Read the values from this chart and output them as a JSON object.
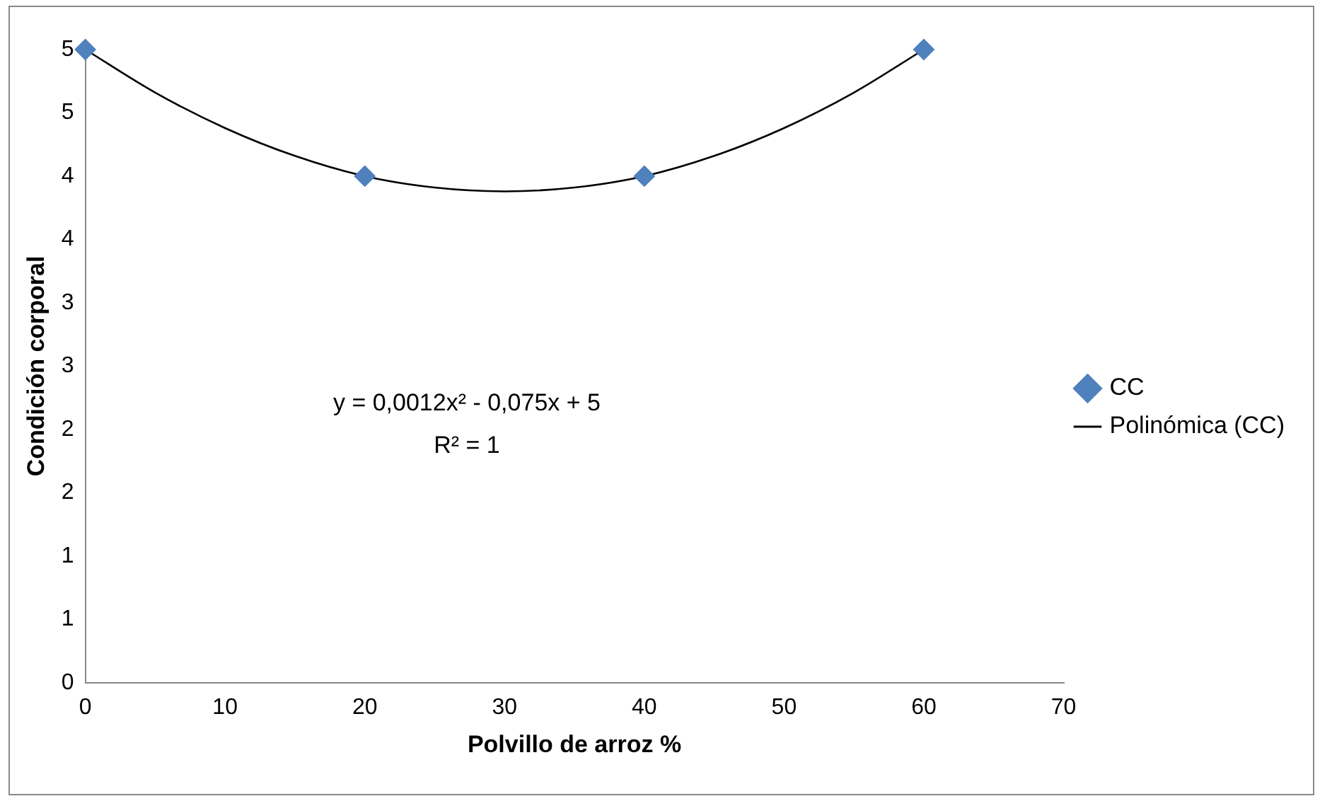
{
  "chart_data": {
    "type": "scatter",
    "xlabel": "Polvillo de arroz %",
    "ylabel": "Condición corporal",
    "xlim": [
      0,
      70
    ],
    "xticks": [
      0,
      10,
      20,
      30,
      40,
      50,
      60,
      70
    ],
    "ylim": [
      0,
      5
    ],
    "yticks": [
      {
        "value": 0,
        "label": "0"
      },
      {
        "value": 0.5,
        "label": "1"
      },
      {
        "value": 1,
        "label": "1"
      },
      {
        "value": 1.5,
        "label": "2"
      },
      {
        "value": 2,
        "label": "2"
      },
      {
        "value": 2.5,
        "label": "3"
      },
      {
        "value": 3,
        "label": "3"
      },
      {
        "value": 3.5,
        "label": "4"
      },
      {
        "value": 4,
        "label": "4"
      },
      {
        "value": 4.5,
        "label": "5"
      },
      {
        "value": 5,
        "label": "5"
      }
    ],
    "grid": false,
    "legend": "right",
    "marker": "diamond",
    "series": [
      {
        "name": "CC",
        "color": "#4f81bd",
        "x": [
          0,
          20,
          40,
          60
        ],
        "values": [
          5,
          4,
          4,
          5
        ]
      },
      {
        "name": "Polinómica (CC)",
        "type": "line",
        "color": "#000000",
        "marker": "none",
        "line_style": "solid",
        "x": [
          0,
          5,
          10,
          15,
          20,
          25,
          30,
          35,
          40,
          45,
          50,
          55,
          60
        ],
        "values": [
          5,
          4.66,
          4.38,
          4.16,
          4,
          3.91,
          3.88,
          3.91,
          4,
          4.16,
          4.38,
          4.66,
          5
        ]
      }
    ],
    "annotations": [
      "y = 0,0012x² - 0,075x + 5",
      "R² = 1"
    ]
  }
}
